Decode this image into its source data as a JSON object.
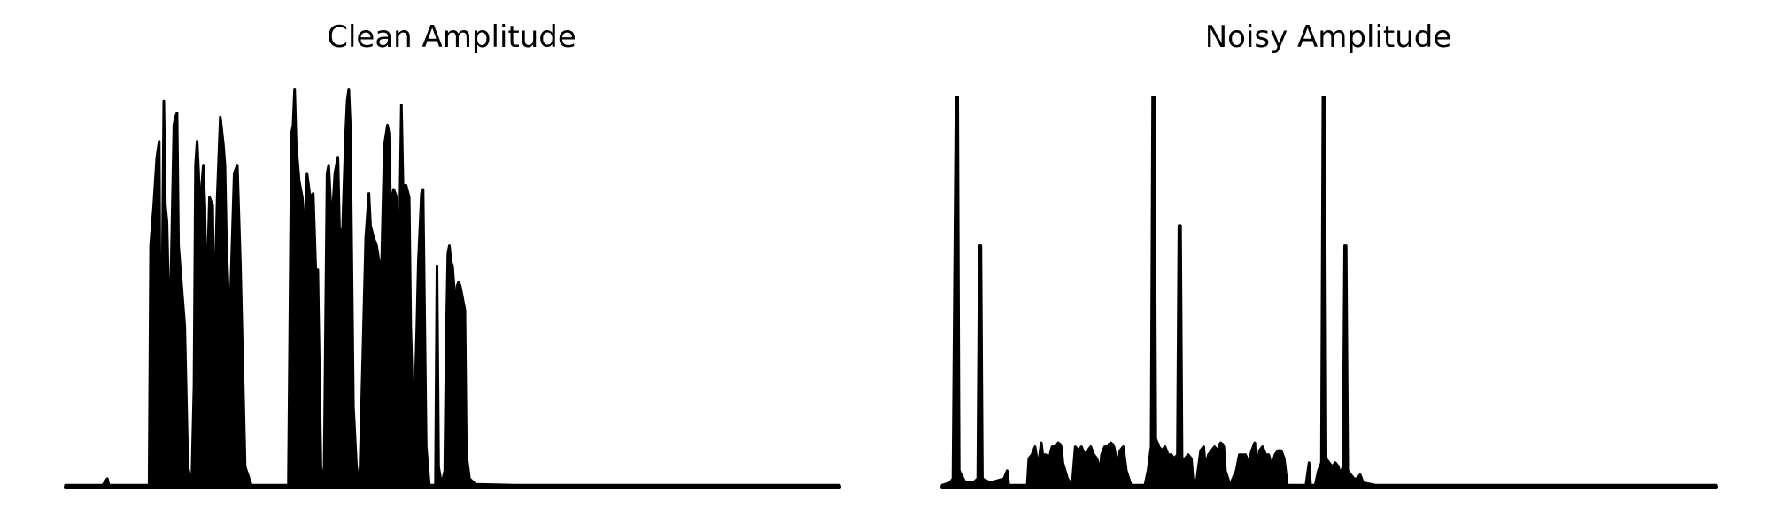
{
  "chart_data": [
    {
      "type": "line",
      "title": "Clean Amplitude",
      "xlabel": "",
      "ylabel": "",
      "axes_visible": false,
      "grid": false,
      "xlim": [
        0,
        1000
      ],
      "ylim": [
        0,
        1.0
      ],
      "color": "#000000",
      "envelope": [
        [
          0,
          0.004
        ],
        [
          48,
          0.004
        ],
        [
          54,
          0.02
        ],
        [
          56,
          0.004
        ],
        [
          108,
          0.004
        ],
        [
          110,
          0.6
        ],
        [
          114,
          0.7
        ],
        [
          118,
          0.82
        ],
        [
          121,
          0.86
        ],
        [
          123,
          0.1
        ],
        [
          127,
          0.96
        ],
        [
          129,
          0.7
        ],
        [
          131,
          0.66
        ],
        [
          133,
          0.5
        ],
        [
          136,
          0.5
        ],
        [
          140,
          0.9
        ],
        [
          142,
          0.92
        ],
        [
          144,
          0.93
        ],
        [
          146,
          0.6
        ],
        [
          150,
          0.5
        ],
        [
          154,
          0.4
        ],
        [
          158,
          0.05
        ],
        [
          163,
          0.004
        ],
        [
          166,
          0.25
        ],
        [
          168,
          0.8
        ],
        [
          170,
          0.86
        ],
        [
          172,
          0.78
        ],
        [
          174,
          0.65
        ],
        [
          176,
          0.75
        ],
        [
          178,
          0.8
        ],
        [
          180,
          0.7
        ],
        [
          182,
          0.45
        ],
        [
          186,
          0.72
        ],
        [
          190,
          0.7
        ],
        [
          192,
          0.4
        ],
        [
          196,
          0.72
        ],
        [
          200,
          0.92
        ],
        [
          204,
          0.85
        ],
        [
          206,
          0.8
        ],
        [
          208,
          0.6
        ],
        [
          212,
          0.4
        ],
        [
          218,
          0.78
        ],
        [
          222,
          0.8
        ],
        [
          226,
          0.55
        ],
        [
          232,
          0.05
        ],
        [
          240,
          0.004
        ],
        [
          288,
          0.004
        ],
        [
          292,
          0.88
        ],
        [
          294,
          0.9
        ],
        [
          296,
          0.99
        ],
        [
          298,
          0.85
        ],
        [
          302,
          0.76
        ],
        [
          306,
          0.72
        ],
        [
          310,
          0.62
        ],
        [
          312,
          0.78
        ],
        [
          316,
          0.72
        ],
        [
          320,
          0.73
        ],
        [
          324,
          0.5
        ],
        [
          326,
          0.54
        ],
        [
          330,
          0.05
        ],
        [
          334,
          0.004
        ],
        [
          338,
          0.78
        ],
        [
          340,
          0.8
        ],
        [
          344,
          0.65
        ],
        [
          348,
          0.78
        ],
        [
          352,
          0.82
        ],
        [
          354,
          0.64
        ],
        [
          358,
          0.64
        ],
        [
          362,
          0.88
        ],
        [
          364,
          0.96
        ],
        [
          366,
          0.99
        ],
        [
          368,
          0.9
        ],
        [
          372,
          0.2
        ],
        [
          376,
          0.05
        ],
        [
          380,
          0.004
        ],
        [
          388,
          0.62
        ],
        [
          392,
          0.73
        ],
        [
          394,
          0.65
        ],
        [
          398,
          0.62
        ],
        [
          402,
          0.6
        ],
        [
          406,
          0.55
        ],
        [
          408,
          0.52
        ],
        [
          412,
          0.85
        ],
        [
          416,
          0.9
        ],
        [
          418,
          0.88
        ],
        [
          420,
          0.7
        ],
        [
          424,
          0.74
        ],
        [
          428,
          0.72
        ],
        [
          430,
          0.42
        ],
        [
          434,
          0.95
        ],
        [
          436,
          0.75
        ],
        [
          440,
          0.75
        ],
        [
          444,
          0.72
        ],
        [
          446,
          0.4
        ],
        [
          450,
          0.12
        ],
        [
          454,
          0.4
        ],
        [
          456,
          0.56
        ],
        [
          460,
          0.73
        ],
        [
          462,
          0.74
        ],
        [
          466,
          0.1
        ],
        [
          470,
          0.004
        ],
        [
          478,
          0.004
        ],
        [
          480,
          0.55
        ],
        [
          482,
          0.05
        ],
        [
          486,
          0.004
        ],
        [
          490,
          0.04
        ],
        [
          492,
          0.37
        ],
        [
          494,
          0.58
        ],
        [
          496,
          0.6
        ],
        [
          498,
          0.56
        ],
        [
          500,
          0.55
        ],
        [
          502,
          0.5
        ],
        [
          504,
          0.42
        ],
        [
          506,
          0.5
        ],
        [
          508,
          0.51
        ],
        [
          510,
          0.5
        ],
        [
          512,
          0.48
        ],
        [
          514,
          0.46
        ],
        [
          516,
          0.44
        ],
        [
          518,
          0.08
        ],
        [
          522,
          0.02
        ],
        [
          530,
          0.006
        ],
        [
          580,
          0.004
        ],
        [
          1000,
          0.004
        ]
      ]
    },
    {
      "type": "line",
      "title": "Noisy Amplitude",
      "xlabel": "",
      "ylabel": "",
      "axes_visible": false,
      "grid": false,
      "xlim": [
        0,
        1000
      ],
      "ylim": [
        0,
        1.0
      ],
      "color": "#000000",
      "envelope": [
        [
          0,
          0.004
        ],
        [
          10,
          0.01
        ],
        [
          14,
          0.02
        ],
        [
          18,
          0.97
        ],
        [
          20,
          0.97
        ],
        [
          22,
          0.04
        ],
        [
          30,
          0.01
        ],
        [
          40,
          0.01
        ],
        [
          46,
          0.02
        ],
        [
          48,
          0.6
        ],
        [
          50,
          0.6
        ],
        [
          52,
          0.02
        ],
        [
          62,
          0.01
        ],
        [
          80,
          0.02
        ],
        [
          84,
          0.04
        ],
        [
          86,
          0.004
        ],
        [
          110,
          0.004
        ],
        [
          112,
          0.07
        ],
        [
          116,
          0.08
        ],
        [
          120,
          0.1
        ],
        [
          124,
          0.05
        ],
        [
          128,
          0.11
        ],
        [
          130,
          0.08
        ],
        [
          134,
          0.08
        ],
        [
          138,
          0.07
        ],
        [
          142,
          0.1
        ],
        [
          146,
          0.1
        ],
        [
          150,
          0.11
        ],
        [
          154,
          0.1
        ],
        [
          156,
          0.06
        ],
        [
          162,
          0.02
        ],
        [
          168,
          0.004
        ],
        [
          172,
          0.1
        ],
        [
          176,
          0.09
        ],
        [
          180,
          0.1
        ],
        [
          184,
          0.08
        ],
        [
          188,
          0.09
        ],
        [
          192,
          0.1
        ],
        [
          196,
          0.08
        ],
        [
          200,
          0.07
        ],
        [
          204,
          0.04
        ],
        [
          206,
          0.08
        ],
        [
          210,
          0.1
        ],
        [
          214,
          0.1
        ],
        [
          218,
          0.11
        ],
        [
          222,
          0.1
        ],
        [
          226,
          0.06
        ],
        [
          230,
          0.09
        ],
        [
          234,
          0.1
        ],
        [
          238,
          0.04
        ],
        [
          244,
          0.004
        ],
        [
          262,
          0.004
        ],
        [
          266,
          0.04
        ],
        [
          270,
          0.1
        ],
        [
          272,
          0.97
        ],
        [
          274,
          0.97
        ],
        [
          276,
          0.12
        ],
        [
          280,
          0.1
        ],
        [
          284,
          0.09
        ],
        [
          288,
          0.1
        ],
        [
          292,
          0.08
        ],
        [
          296,
          0.08
        ],
        [
          300,
          0.07
        ],
        [
          304,
          0.08
        ],
        [
          306,
          0.65
        ],
        [
          308,
          0.65
        ],
        [
          310,
          0.07
        ],
        [
          314,
          0.07
        ],
        [
          318,
          0.08
        ],
        [
          322,
          0.07
        ],
        [
          324,
          0.02
        ],
        [
          328,
          0.004
        ],
        [
          334,
          0.09
        ],
        [
          338,
          0.1
        ],
        [
          340,
          0.05
        ],
        [
          344,
          0.08
        ],
        [
          348,
          0.09
        ],
        [
          352,
          0.1
        ],
        [
          356,
          0.09
        ],
        [
          360,
          0.11
        ],
        [
          364,
          0.1
        ],
        [
          366,
          0.04
        ],
        [
          372,
          0.004
        ],
        [
          380,
          0.04
        ],
        [
          384,
          0.08
        ],
        [
          388,
          0.08
        ],
        [
          392,
          0.08
        ],
        [
          396,
          0.06
        ],
        [
          400,
          0.09
        ],
        [
          404,
          0.11
        ],
        [
          406,
          0.04
        ],
        [
          410,
          0.09
        ],
        [
          414,
          0.1
        ],
        [
          418,
          0.08
        ],
        [
          422,
          0.08
        ],
        [
          426,
          0.05
        ],
        [
          430,
          0.08
        ],
        [
          434,
          0.09
        ],
        [
          438,
          0.09
        ],
        [
          442,
          0.07
        ],
        [
          446,
          0.004
        ],
        [
          470,
          0.004
        ],
        [
          474,
          0.06
        ],
        [
          476,
          0.004
        ],
        [
          482,
          0.004
        ],
        [
          486,
          0.04
        ],
        [
          490,
          0.06
        ],
        [
          492,
          0.97
        ],
        [
          494,
          0.97
        ],
        [
          496,
          0.07
        ],
        [
          500,
          0.06
        ],
        [
          504,
          0.05
        ],
        [
          508,
          0.06
        ],
        [
          512,
          0.05
        ],
        [
          514,
          0.03
        ],
        [
          518,
          0.05
        ],
        [
          520,
          0.6
        ],
        [
          522,
          0.6
        ],
        [
          524,
          0.04
        ],
        [
          528,
          0.03
        ],
        [
          532,
          0.02
        ],
        [
          536,
          0.02
        ],
        [
          540,
          0.03
        ],
        [
          544,
          0.01
        ],
        [
          560,
          0.004
        ],
        [
          1000,
          0.004
        ]
      ]
    }
  ]
}
